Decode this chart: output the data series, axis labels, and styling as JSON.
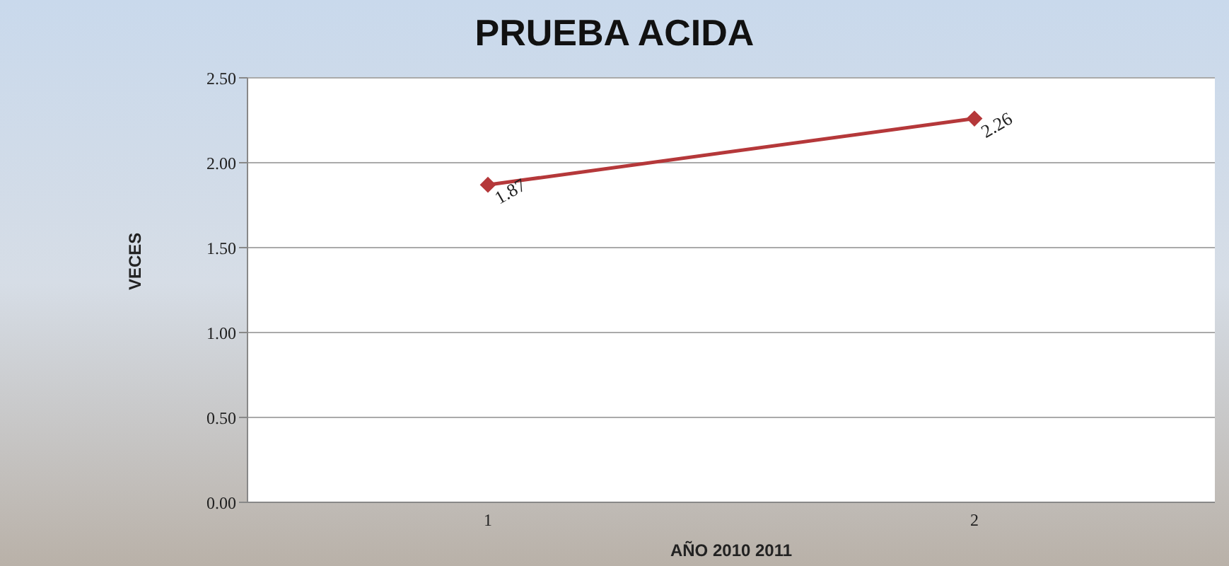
{
  "chart_data": {
    "type": "line",
    "title": "PRUEBA ACIDA",
    "xlabel": "AÑO 2010  2011",
    "ylabel": "VECES",
    "categories": [
      "1",
      "2"
    ],
    "series": [
      {
        "color": "#b5383a",
        "values": [
          1.87,
          2.26
        ]
      }
    ],
    "ylim": [
      0,
      2.5
    ],
    "yticks": [
      {
        "value": 0,
        "label": "0.00"
      },
      {
        "value": 0.5,
        "label": "0.50"
      },
      {
        "value": 1,
        "label": "1.00"
      },
      {
        "value": 1.5,
        "label": "1.50"
      },
      {
        "value": 2,
        "label": "2.00"
      },
      {
        "value": 2.5,
        "label": "2.50"
      }
    ],
    "grid": "y",
    "marker": "diamond",
    "line_style": "solid",
    "data_labels": true,
    "legend": false
  }
}
